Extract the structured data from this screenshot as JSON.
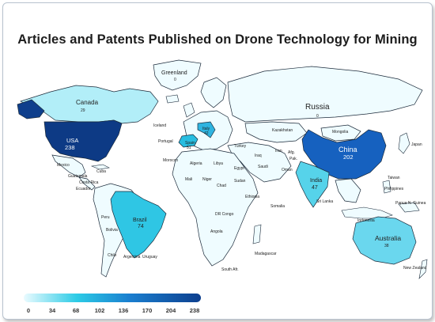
{
  "title": "Articles and Patents Published on Drone Technology for Mining",
  "legend": {
    "ticks": [
      "0",
      "34",
      "68",
      "102",
      "136",
      "170",
      "204",
      "238"
    ],
    "colors": [
      "#eafbff",
      "#2ccbe6",
      "#1a7ecf",
      "#0d3f8e"
    ]
  },
  "regions": [
    {
      "name": "Greenland",
      "value": "0"
    },
    {
      "name": "Canada",
      "value": "29"
    },
    {
      "name": "USA",
      "value": "238"
    },
    {
      "name": "Mexico",
      "value": ""
    },
    {
      "name": "Brazil",
      "value": "74"
    },
    {
      "name": "Russia",
      "value": "0"
    },
    {
      "name": "China",
      "value": "202"
    },
    {
      "name": "India",
      "value": "47"
    },
    {
      "name": "Australia",
      "value": "38"
    },
    {
      "name": "Kazakhstan",
      "value": "0"
    },
    {
      "name": "Mongolia",
      "value": "0"
    },
    {
      "name": "Japan",
      "value": "0"
    },
    {
      "name": "Algeria",
      "value": "0"
    },
    {
      "name": "Libya",
      "value": "0"
    },
    {
      "name": "Egypt",
      "value": "0"
    },
    {
      "name": "Sudan",
      "value": "0"
    },
    {
      "name": "Chad",
      "value": "0"
    },
    {
      "name": "Niger",
      "value": "0"
    },
    {
      "name": "Mali",
      "value": "0"
    },
    {
      "name": "Morocco",
      "value": "0"
    },
    {
      "name": "Ethiopia",
      "value": "0"
    },
    {
      "name": "Somalia",
      "value": "0"
    },
    {
      "name": "DR Congo",
      "value": "0"
    },
    {
      "name": "Angola",
      "value": "0"
    },
    {
      "name": "South Afr.",
      "value": "0"
    },
    {
      "name": "Madagascar",
      "value": "0"
    },
    {
      "name": "Saudi",
      "value": "0"
    },
    {
      "name": "Iran",
      "value": "0"
    },
    {
      "name": "Turkey",
      "value": "0"
    },
    {
      "name": "Iceland",
      "value": "0"
    },
    {
      "name": "Portugal",
      "value": "0"
    },
    {
      "name": "Peru",
      "value": "0"
    },
    {
      "name": "Bolivia",
      "value": "0"
    },
    {
      "name": "Chile",
      "value": "0"
    },
    {
      "name": "Argentina",
      "value": "0"
    },
    {
      "name": "Uruguay",
      "value": "0"
    },
    {
      "name": "Sri Lanka",
      "value": "0"
    },
    {
      "name": "Indonesia",
      "value": "0"
    },
    {
      "name": "Philippines",
      "value": "0"
    },
    {
      "name": "Taiwan",
      "value": "0"
    },
    {
      "name": "Papua N. Guinea",
      "value": "0"
    },
    {
      "name": "New Zealand",
      "value": "0"
    },
    {
      "name": "Cuba",
      "value": "0"
    },
    {
      "name": "Ecuador",
      "value": "0"
    },
    {
      "name": "Guatemala",
      "value": "0"
    },
    {
      "name": "Costa Rica",
      "value": "0"
    },
    {
      "name": "Oman",
      "value": "0"
    },
    {
      "name": "Pak.",
      "value": "0"
    },
    {
      "name": "Afg.",
      "value": "0"
    },
    {
      "name": "Iraq",
      "value": "0"
    },
    {
      "name": "Spain",
      "value": "51"
    },
    {
      "name": "Italy",
      "value": "42"
    }
  ]
}
